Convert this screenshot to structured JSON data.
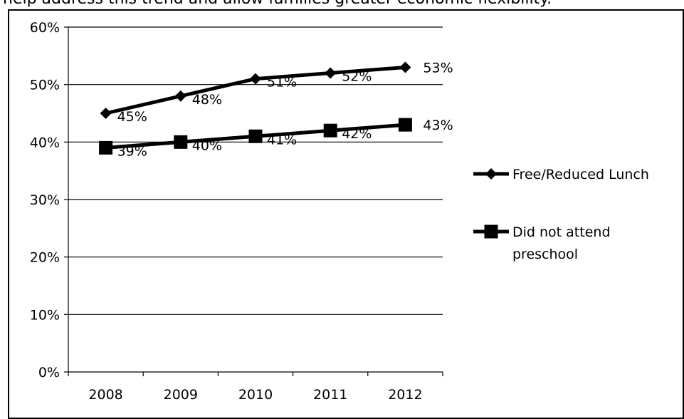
{
  "page": {
    "top_text": "help address this trend and allow families greater economic flexibility."
  },
  "chart_data": {
    "type": "line",
    "categories": [
      "2008",
      "2009",
      "2010",
      "2011",
      "2012"
    ],
    "ylim": [
      0,
      0.6
    ],
    "y_ticks": [
      0,
      0.1,
      0.2,
      0.3,
      0.4,
      0.5,
      0.6
    ],
    "y_tick_labels": [
      "0%",
      "10%",
      "20%",
      "30%",
      "40%",
      "50%",
      "60%"
    ],
    "grid": true,
    "legend_position": "right",
    "series": [
      {
        "name": "Free/Reduced Lunch",
        "legend_lines": [
          "Free/Reduced Lunch"
        ],
        "marker": "diamond",
        "values": [
          0.45,
          0.48,
          0.51,
          0.52,
          0.53
        ],
        "labels": [
          "45%",
          "48%",
          "51%",
          "52%",
          "53%"
        ]
      },
      {
        "name": "Did not attend preschool",
        "legend_lines": [
          "Did not attend",
          "preschool"
        ],
        "marker": "square",
        "values": [
          0.39,
          0.4,
          0.41,
          0.42,
          0.43
        ],
        "labels": [
          "39%",
          "40%",
          "41%",
          "42%",
          "43%"
        ]
      }
    ]
  }
}
